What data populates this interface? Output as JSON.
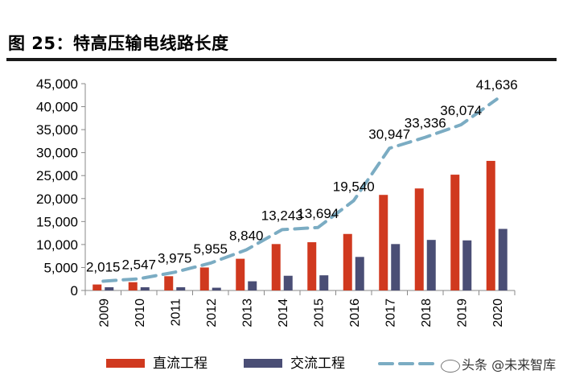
{
  "title": "图 25：特高压输电线路长度",
  "watermark": "头条 @未来智库",
  "colors": {
    "dc": "#d0391f",
    "ac": "#4a4e75",
    "line": "#7bacc3"
  },
  "chart_data": {
    "type": "bar",
    "categories": [
      "2009",
      "2010",
      "2011",
      "2012",
      "2013",
      "2014",
      "2015",
      "2016",
      "2017",
      "2018",
      "2019",
      "2020"
    ],
    "series": [
      {
        "name": "直流工程",
        "kind": "bar",
        "values": [
          1300,
          1800,
          3100,
          5000,
          6900,
          10100,
          10500,
          12300,
          20800,
          22200,
          25200,
          28200
        ]
      },
      {
        "name": "交流工程",
        "kind": "bar",
        "values": [
          700,
          700,
          700,
          600,
          2000,
          3200,
          3300,
          7300,
          10100,
          11000,
          10900,
          13400
        ]
      },
      {
        "name": "",
        "kind": "dashed-line",
        "values": [
          2015,
          2547,
          3975,
          5955,
          8840,
          13243,
          13694,
          19540,
          30947,
          33336,
          36074,
          41636
        ],
        "labels": [
          "2,015",
          "2,547",
          "3,975",
          "5,955",
          "8,840",
          "13,243",
          "13,694",
          "19,540",
          "30,947",
          "33,336",
          "36,074",
          "41,636"
        ]
      }
    ],
    "y_ticks": [
      "0",
      "5,000",
      "10,000",
      "15,000",
      "20,000",
      "25,000",
      "30,000",
      "35,000",
      "40,000",
      "45,000"
    ],
    "ylim": [
      0,
      45000
    ],
    "legend": {
      "position": "bottom",
      "items": [
        "直流工程",
        "交流工程"
      ]
    }
  }
}
